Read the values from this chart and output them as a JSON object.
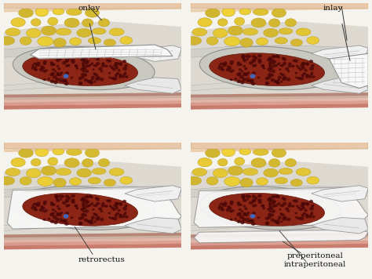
{
  "background_color": "#f5f3ee",
  "panel_labels": {
    "top_left": "onlay",
    "top_right": "inlay",
    "bottom_left": "retrorectus",
    "bottom_right_1": "preperitoneal",
    "bottom_right_2": "intraperitoneal"
  },
  "colors": {
    "fat_yellow_light": "#f0de7a",
    "fat_yellow": "#ddc840",
    "fat_yellow_dark": "#c8b020",
    "fat_outline": "#b8a020",
    "viscera_red": "#7a2010",
    "viscera_red2": "#8b2515",
    "viscera_dot": "#4a0808",
    "fascia_gray": "#c8c8c8",
    "fascia_light": "#e8e8e8",
    "fascia_dark": "#a0a0a0",
    "muscle_stripe1": "#c06858",
    "muscle_stripe2": "#d89080",
    "muscle_stripe3": "#e0b0a0",
    "muscle_stripe4": "#c8a898",
    "muscle_stripe5": "#b07868",
    "skin_outer": "#e8c8a8",
    "mesh_face": "#f8f8f8",
    "mesh_edge": "#909090",
    "mesh_line": "#c0c0c0",
    "arrow_color": "#333333",
    "flap_face": "#f0f0f0",
    "flap_edge": "#999999",
    "blue_dot": "#4466bb"
  },
  "figsize": [
    4.74,
    3.56
  ],
  "dpi": 100
}
